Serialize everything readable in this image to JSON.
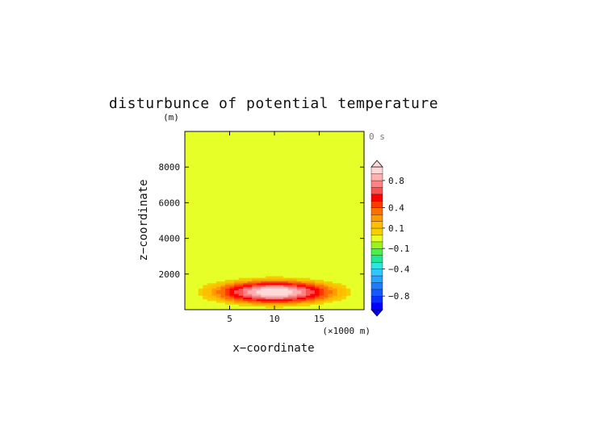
{
  "chart_data": {
    "type": "heatmap",
    "title": "disturbunce of potential temperature",
    "y_unit_label": "(m)",
    "time_label": "0 s",
    "xlabel": "x−coordinate",
    "ylabel": "z−coordinate",
    "x_unit_label": "(×1000 m)",
    "xlim": [
      0,
      20
    ],
    "ylim": [
      0,
      10000
    ],
    "x_ticks": [
      "5",
      "10",
      "15"
    ],
    "y_ticks": [
      "2000",
      "4000",
      "6000",
      "8000"
    ],
    "x_tick_values": [
      5,
      10,
      15
    ],
    "y_tick_values": [
      2000,
      4000,
      6000,
      8000
    ],
    "field": {
      "center_x": 10,
      "center_z": 1000,
      "radius_x": 10,
      "radius_z": 1000,
      "max": 1.0
    },
    "contour_levels": [
      -1.0,
      -0.9,
      -0.8,
      -0.7,
      -0.6,
      -0.5,
      -0.4,
      -0.3,
      -0.2,
      -0.1,
      -0.05,
      0.05,
      0.1,
      0.2,
      0.3,
      0.4,
      0.5,
      0.6,
      0.7,
      0.8,
      0.9,
      1.0
    ],
    "colorbar": {
      "colors": [
        "#0000ff",
        "#0a2fff",
        "#1458ff",
        "#1e7dff",
        "#2aa2ff",
        "#34c4ff",
        "#2ee6e0",
        "#20e69a",
        "#48f048",
        "#9ef01e",
        "#e6ff28",
        "#f5d000",
        "#ffbf00",
        "#ff9a00",
        "#ff6e00",
        "#ff3a00",
        "#ff0000",
        "#ff5050",
        "#ff8282",
        "#ffb0b0",
        "#ffd8d8"
      ],
      "labels": [
        "0.8",
        "0.4",
        "0.1",
        "−0.1",
        "−0.4",
        "−0.8"
      ],
      "label_values": [
        0.8,
        0.4,
        0.1,
        -0.1,
        -0.4,
        -0.8
      ]
    }
  }
}
